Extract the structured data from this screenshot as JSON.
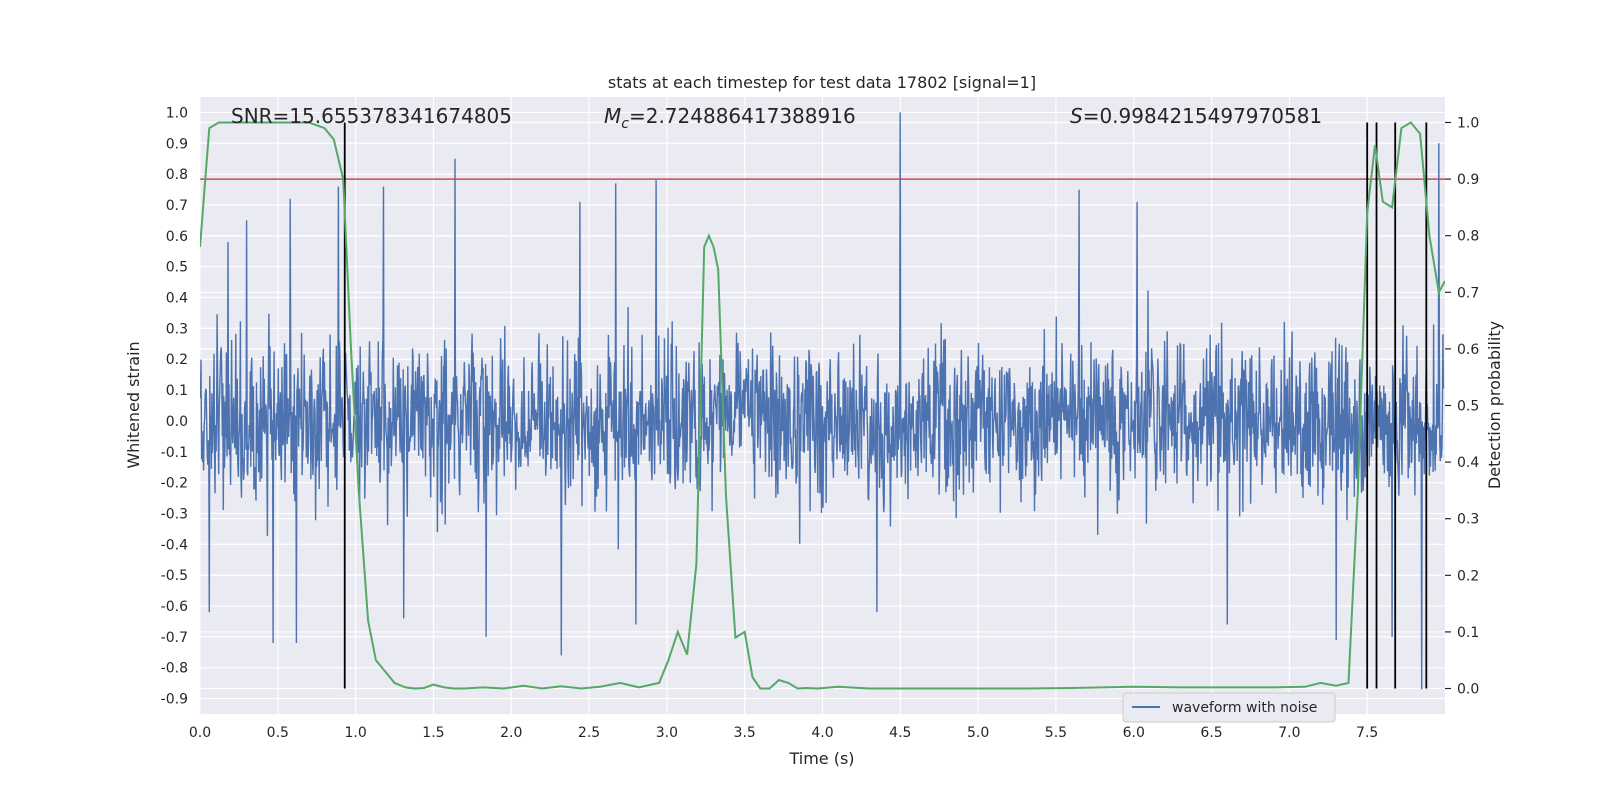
{
  "chart_data": {
    "type": "line",
    "title": "stats at each timestep for test data 17802 [signal=1]",
    "xlabel": "Time (s)",
    "ylabel": "Whitened strain",
    "y2label": "Detection probability",
    "xlim": [
      0.0,
      8.0
    ],
    "ylim": [
      -0.95,
      1.05
    ],
    "y2lim": [
      -0.045,
      1.045
    ],
    "x_ticks": [
      "0.0",
      "0.5",
      "1.0",
      "1.5",
      "2.0",
      "2.5",
      "3.0",
      "3.5",
      "4.0",
      "4.5",
      "5.0",
      "5.5",
      "6.0",
      "6.5",
      "7.0",
      "7.5"
    ],
    "y_ticks": [
      "1.0",
      "0.9",
      "0.8",
      "0.7",
      "0.6",
      "0.5",
      "0.4",
      "0.3",
      "0.2",
      "0.1",
      "0.0",
      "-0.1",
      "-0.2",
      "-0.3",
      "-0.4",
      "-0.5",
      "-0.6",
      "-0.7",
      "-0.8",
      "-0.9"
    ],
    "y2_ticks": [
      "1.0",
      "0.9",
      "0.8",
      "0.7",
      "0.6",
      "0.5",
      "0.4",
      "0.3",
      "0.2",
      "0.1",
      "0.0"
    ],
    "annotations": {
      "snr": "SNR=15.655378341674805",
      "mc_symbol": "M",
      "mc_sub": "c",
      "mc_value": "=2.724886417388916",
      "s_symbol": "S",
      "s_value": "=0.9984215497970581"
    },
    "legend": {
      "label": "waveform with noise",
      "placement": "lower-right"
    },
    "threshold": {
      "value": 0.9,
      "axis": "y2",
      "color": "#c44e52"
    },
    "event_markers_x": [
      0.93,
      7.5,
      7.56,
      7.68,
      7.88
    ],
    "colors": {
      "waveform": "#4c72b0",
      "probability": "#55a868",
      "threshold": "#c44e52",
      "markers": "#000000",
      "plot_bg": "#eaeaf2",
      "grid": "#ffffff"
    },
    "series": [
      {
        "name": "waveform with noise",
        "axis": "y",
        "kind": "dense-noise",
        "x_range": [
          0.0,
          7.99
        ],
        "samples": 2400,
        "typical_amplitude": 0.3,
        "peaks": [
          {
            "x": 0.06,
            "value": -0.62
          },
          {
            "x": 0.18,
            "value": 0.58
          },
          {
            "x": 0.3,
            "value": 0.65
          },
          {
            "x": 0.47,
            "value": -0.72
          },
          {
            "x": 0.58,
            "value": 0.72
          },
          {
            "x": 0.62,
            "value": -0.72
          },
          {
            "x": 0.89,
            "value": 0.76
          },
          {
            "x": 1.18,
            "value": 0.76
          },
          {
            "x": 1.31,
            "value": -0.64
          },
          {
            "x": 1.64,
            "value": 0.85
          },
          {
            "x": 1.84,
            "value": -0.7
          },
          {
            "x": 2.32,
            "value": -0.76
          },
          {
            "x": 2.44,
            "value": 0.71
          },
          {
            "x": 2.67,
            "value": 0.77
          },
          {
            "x": 2.8,
            "value": -0.66
          },
          {
            "x": 2.93,
            "value": 0.78
          },
          {
            "x": 4.5,
            "value": 1.0
          },
          {
            "x": 4.35,
            "value": -0.62
          },
          {
            "x": 5.65,
            "value": 0.75
          },
          {
            "x": 6.02,
            "value": 0.71
          },
          {
            "x": 6.6,
            "value": -0.66
          },
          {
            "x": 7.3,
            "value": -0.71
          },
          {
            "x": 7.66,
            "value": -0.7
          },
          {
            "x": 7.85,
            "value": -0.87
          },
          {
            "x": 7.96,
            "value": 0.9
          }
        ]
      },
      {
        "name": "detection probability",
        "axis": "y2",
        "kind": "line",
        "x": [
          0.0,
          0.06,
          0.12,
          0.18,
          0.3,
          0.5,
          0.7,
          0.8,
          0.86,
          0.92,
          0.97,
          1.02,
          1.08,
          1.13,
          1.19,
          1.25,
          1.32,
          1.38,
          1.44,
          1.5,
          1.57,
          1.63,
          1.7,
          1.82,
          1.95,
          2.08,
          2.2,
          2.32,
          2.45,
          2.57,
          2.7,
          2.82,
          2.95,
          3.01,
          3.07,
          3.13,
          3.19,
          3.24,
          3.27,
          3.3,
          3.33,
          3.38,
          3.44,
          3.5,
          3.55,
          3.6,
          3.66,
          3.72,
          3.78,
          3.84,
          3.9,
          3.97,
          4.1,
          4.3,
          4.6,
          5.0,
          5.3,
          5.6,
          5.8,
          6.0,
          6.3,
          6.6,
          6.9,
          7.1,
          7.2,
          7.3,
          7.38,
          7.44,
          7.5,
          7.55,
          7.6,
          7.66,
          7.72,
          7.78,
          7.84,
          7.9,
          7.96,
          8.0
        ],
        "y": [
          0.78,
          0.99,
          1.0,
          1.0,
          1.0,
          1.0,
          1.0,
          0.99,
          0.97,
          0.9,
          0.6,
          0.35,
          0.12,
          0.05,
          0.03,
          0.01,
          0.002,
          0.0,
          0.001,
          0.007,
          0.002,
          0.0,
          0.0,
          0.002,
          0.0,
          0.005,
          0.0,
          0.004,
          0.0,
          0.003,
          0.01,
          0.002,
          0.01,
          0.05,
          0.1,
          0.06,
          0.22,
          0.78,
          0.8,
          0.78,
          0.74,
          0.34,
          0.09,
          0.1,
          0.02,
          0.0,
          0.0,
          0.015,
          0.01,
          0.0,
          0.001,
          0.0,
          0.003,
          0.0,
          0.0,
          0.0,
          0.0,
          0.001,
          0.002,
          0.003,
          0.002,
          0.002,
          0.002,
          0.003,
          0.01,
          0.005,
          0.01,
          0.35,
          0.84,
          0.96,
          0.86,
          0.85,
          0.99,
          1.0,
          0.98,
          0.8,
          0.7,
          0.72
        ]
      }
    ]
  }
}
